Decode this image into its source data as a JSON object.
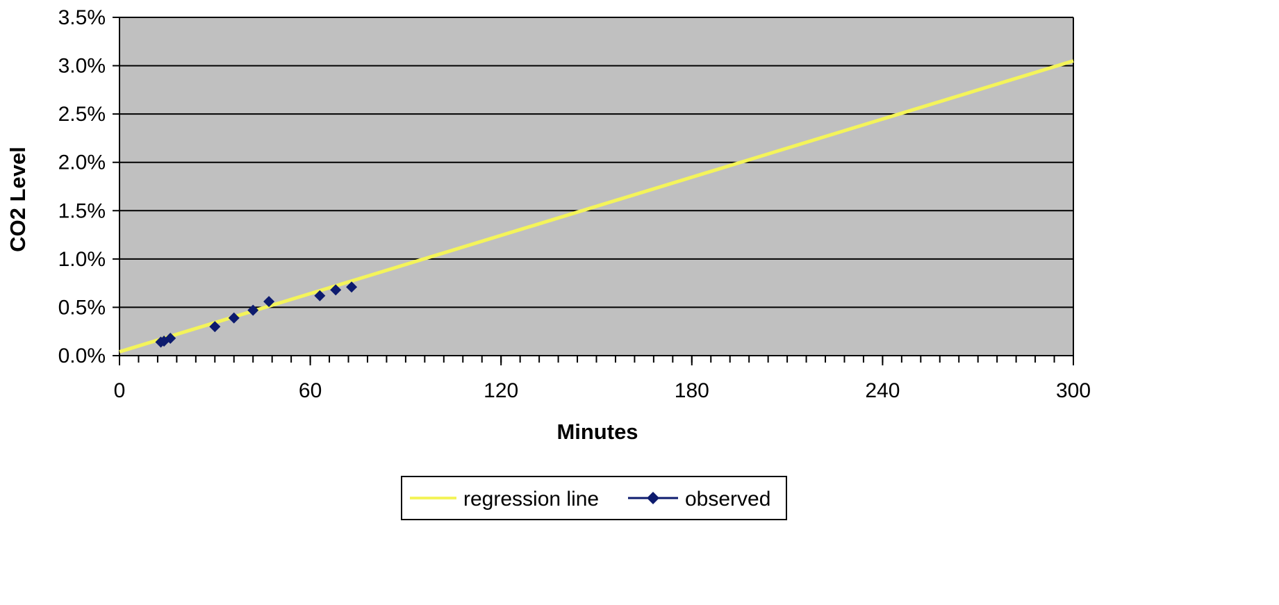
{
  "chart_data": {
    "type": "scatter",
    "title": "",
    "xlabel": "Minutes",
    "ylabel": "CO2 Level",
    "xlim": [
      0,
      300
    ],
    "ylim": [
      0,
      3.5
    ],
    "x_ticks": [
      0,
      60,
      120,
      180,
      240,
      300
    ],
    "x_tick_labels": [
      "0",
      "60",
      "120",
      "180",
      "240",
      "300"
    ],
    "x_minor_tick_step": 6,
    "y_ticks": [
      0,
      0.5,
      1.0,
      1.5,
      2.0,
      2.5,
      3.0,
      3.5
    ],
    "y_tick_labels": [
      "0.0%",
      "0.5%",
      "1.0%",
      "1.5%",
      "2.0%",
      "2.5%",
      "3.0%",
      "3.5%"
    ],
    "grid": "horizontal",
    "plot_background": "#c0c0c0",
    "legend_position": "bottom",
    "series": [
      {
        "name": "regression line",
        "kind": "line",
        "color": "#f4f45a",
        "x": [
          0,
          300
        ],
        "y": [
          0.04,
          3.05
        ]
      },
      {
        "name": "observed",
        "kind": "scatter",
        "marker": "diamond",
        "color": "#0d1b6e",
        "x": [
          13,
          14,
          16,
          30,
          36,
          42,
          47,
          63,
          68,
          73
        ],
        "y": [
          0.14,
          0.15,
          0.18,
          0.3,
          0.39,
          0.47,
          0.56,
          0.62,
          0.68,
          0.71
        ]
      }
    ]
  }
}
